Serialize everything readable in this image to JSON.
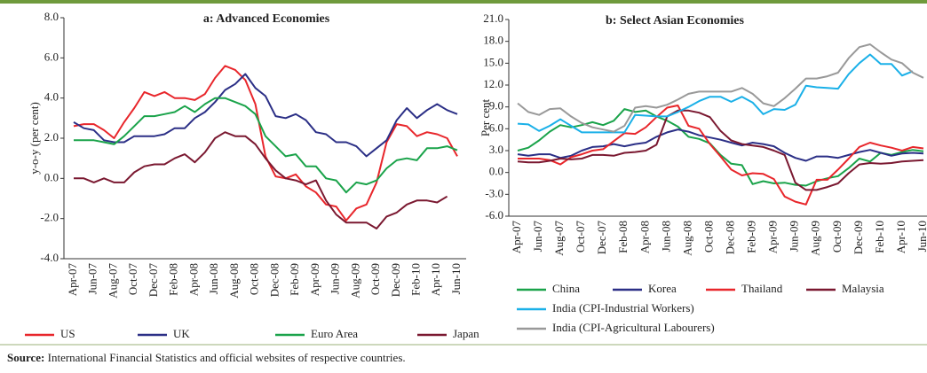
{
  "chart_data": [
    {
      "type": "line",
      "title": "a: Advanced Economies",
      "y_label": "y-o-y (per cent)",
      "categories": [
        "Apr-07",
        null,
        "Jun-07",
        null,
        "Aug-07",
        null,
        "Oct-07",
        null,
        "Dec-07",
        null,
        "Feb-08",
        null,
        "Apr-08",
        null,
        "Jun-08",
        null,
        "Aug-08",
        null,
        "Oct-08",
        null,
        "Dec-08",
        null,
        "Feb-09",
        null,
        "Apr-09",
        null,
        "Jun-09",
        null,
        "Aug-09",
        null,
        "Oct-09",
        null,
        "Dec-09",
        null,
        "Feb-10",
        null,
        "Apr-10",
        null,
        "Jun-10"
      ],
      "ylim": [
        -4,
        8
      ],
      "yticks": [
        {
          "value": -4,
          "label": "-4.0"
        },
        {
          "value": -2,
          "label": "-2.0"
        },
        {
          "value": 0,
          "label": "0.0"
        },
        {
          "value": 2,
          "label": "2.0"
        },
        {
          "value": 4,
          "label": "4.0"
        },
        {
          "value": 6,
          "label": "6.0"
        },
        {
          "value": 8,
          "label": "8.0"
        }
      ],
      "series": [
        {
          "name": "US",
          "color": "#e8262b",
          "values": [
            2.6,
            2.7,
            2.7,
            2.4,
            2.0,
            2.8,
            3.5,
            4.3,
            4.1,
            4.3,
            4.0,
            4.0,
            3.9,
            4.2,
            5.0,
            5.6,
            5.4,
            4.9,
            3.7,
            1.1,
            0.1,
            0.0,
            0.2,
            -0.4,
            -0.7,
            -1.3,
            -1.4,
            -2.1,
            -1.5,
            -1.3,
            -0.2,
            1.8,
            2.7,
            2.6,
            2.1,
            2.3,
            2.2,
            2.0,
            1.1
          ]
        },
        {
          "name": "UK",
          "color": "#2b2f86",
          "values": [
            2.8,
            2.5,
            2.4,
            1.9,
            1.8,
            1.8,
            2.1,
            2.1,
            2.1,
            2.2,
            2.5,
            2.5,
            3.0,
            3.3,
            3.8,
            4.4,
            4.7,
            5.2,
            4.5,
            4.1,
            3.1,
            3.0,
            3.2,
            2.9,
            2.3,
            2.2,
            1.8,
            1.8,
            1.6,
            1.1,
            1.5,
            1.9,
            2.9,
            3.5,
            3.0,
            3.4,
            3.7,
            3.4,
            3.2
          ]
        },
        {
          "name": "Euro Area",
          "color": "#1aa34a",
          "values": [
            1.9,
            1.9,
            1.9,
            1.8,
            1.7,
            2.1,
            2.6,
            3.1,
            3.1,
            3.2,
            3.3,
            3.6,
            3.3,
            3.7,
            4.0,
            4.0,
            3.8,
            3.6,
            3.2,
            2.1,
            1.6,
            1.1,
            1.2,
            0.6,
            0.6,
            0.0,
            -0.1,
            -0.7,
            -0.2,
            -0.3,
            -0.1,
            0.5,
            0.9,
            1.0,
            0.9,
            1.5,
            1.5,
            1.6,
            1.4
          ]
        },
        {
          "name": "Japan",
          "color": "#7a1830",
          "values": [
            0.0,
            0.0,
            -0.2,
            0.0,
            -0.2,
            -0.2,
            0.3,
            0.6,
            0.7,
            0.7,
            1.0,
            1.2,
            0.8,
            1.3,
            2.0,
            2.3,
            2.1,
            2.1,
            1.7,
            1.0,
            0.4,
            0.0,
            -0.1,
            -0.3,
            -0.1,
            -1.1,
            -1.8,
            -2.2,
            -2.2,
            -2.2,
            -2.5,
            -1.9,
            -1.7,
            -1.3,
            -1.1,
            -1.1,
            -1.2,
            -0.9,
            null
          ]
        }
      ]
    },
    {
      "type": "line",
      "title": "b: Select Asian Economies",
      "y_label": "Per cent",
      "categories": [
        "Apr-07",
        null,
        "Jun-07",
        null,
        "Aug-07",
        null,
        "Oct-07",
        null,
        "Dec-07",
        null,
        "Feb-08",
        null,
        "Apr-08",
        null,
        "Jun-08",
        null,
        "Aug-08",
        null,
        "Oct-08",
        null,
        "Dec-08",
        null,
        "Feb-09",
        null,
        "Apr-09",
        null,
        "Jun-09",
        null,
        "Aug-09",
        null,
        "Oct-09",
        null,
        "Dec-09",
        null,
        "Feb-10",
        null,
        "Apr-10",
        null,
        "Jun-10"
      ],
      "ylim": [
        -6,
        21
      ],
      "yticks": [
        {
          "value": -6,
          "label": "-6.0"
        },
        {
          "value": -3,
          "label": "-3.0"
        },
        {
          "value": 0,
          "label": "0.0"
        },
        {
          "value": 3,
          "label": "3.0"
        },
        {
          "value": 6,
          "label": "6.0"
        },
        {
          "value": 9,
          "label": "9.0"
        },
        {
          "value": 12,
          "label": "12.0"
        },
        {
          "value": 15,
          "label": "15.0"
        },
        {
          "value": 18,
          "label": "18.0"
        },
        {
          "value": 21,
          "label": "21.0"
        }
      ],
      "series": [
        {
          "name": "China",
          "color": "#1aa34a",
          "values": [
            3.0,
            3.4,
            4.4,
            5.6,
            6.5,
            6.2,
            6.5,
            6.9,
            6.5,
            7.1,
            8.7,
            8.3,
            8.5,
            7.7,
            7.1,
            6.3,
            4.9,
            4.6,
            4.0,
            2.4,
            1.2,
            1.0,
            -1.6,
            -1.2,
            -1.5,
            -1.4,
            -1.7,
            -1.8,
            -1.2,
            -0.8,
            -0.5,
            0.6,
            1.9,
            1.5,
            2.7,
            2.4,
            2.8,
            3.1,
            2.9
          ]
        },
        {
          "name": "Korea",
          "color": "#2b2f86",
          "values": [
            2.5,
            2.3,
            2.5,
            2.5,
            2.0,
            2.3,
            3.0,
            3.5,
            3.6,
            3.9,
            3.6,
            3.9,
            4.1,
            4.9,
            5.5,
            5.9,
            5.6,
            5.1,
            4.8,
            4.5,
            4.1,
            3.7,
            4.1,
            3.9,
            3.6,
            2.7,
            2.0,
            1.6,
            2.2,
            2.2,
            2.0,
            2.4,
            2.8,
            3.1,
            2.7,
            2.3,
            2.6,
            2.7,
            2.6
          ]
        },
        {
          "name": "Thailand",
          "color": "#e8262b",
          "values": [
            1.9,
            1.9,
            1.9,
            1.7,
            1.1,
            2.1,
            2.5,
            3.0,
            3.2,
            4.3,
            5.4,
            5.3,
            6.2,
            7.6,
            8.9,
            9.2,
            6.4,
            6.0,
            3.9,
            2.2,
            0.4,
            -0.4,
            -0.1,
            -0.2,
            -0.9,
            -3.3,
            -4.0,
            -4.4,
            -1.0,
            -1.0,
            0.4,
            1.9,
            3.5,
            4.1,
            3.7,
            3.4,
            3.0,
            3.5,
            3.3
          ]
        },
        {
          "name": "Malaysia",
          "color": "#7a1830",
          "values": [
            1.5,
            1.4,
            1.4,
            1.6,
            1.9,
            1.8,
            1.9,
            2.4,
            2.4,
            2.3,
            2.7,
            2.8,
            3.0,
            3.8,
            7.7,
            8.5,
            8.5,
            8.2,
            7.6,
            5.7,
            4.4,
            3.9,
            3.7,
            3.5,
            3.0,
            2.4,
            -1.4,
            -2.4,
            -2.4,
            -2.0,
            -1.5,
            -0.1,
            1.1,
            1.3,
            1.2,
            1.3,
            1.5,
            1.6,
            1.7
          ]
        },
        {
          "name": "India (CPI-Industrial Workers)",
          "color": "#1ab0e8",
          "values": [
            6.7,
            6.6,
            5.7,
            6.4,
            7.3,
            6.4,
            5.5,
            5.5,
            5.5,
            5.5,
            5.5,
            7.9,
            7.8,
            7.7,
            7.7,
            8.3,
            9.0,
            9.8,
            10.4,
            10.4,
            9.7,
            10.4,
            9.6,
            8.0,
            8.7,
            8.6,
            9.3,
            11.9,
            11.7,
            11.6,
            11.5,
            13.5,
            15.0,
            16.2,
            14.9,
            14.9,
            13.3,
            13.9,
            null
          ]
        },
        {
          "name": "India (CPI-Agricultural Labourers)",
          "color": "#999999",
          "values": [
            9.5,
            8.3,
            7.9,
            8.7,
            8.8,
            7.7,
            6.8,
            6.2,
            5.9,
            5.6,
            6.4,
            8.9,
            9.1,
            8.9,
            9.3,
            10.0,
            10.8,
            11.1,
            11.1,
            11.1,
            11.1,
            11.6,
            10.8,
            9.5,
            9.1,
            10.2,
            11.5,
            12.9,
            12.9,
            13.2,
            13.7,
            15.7,
            17.2,
            17.6,
            16.5,
            15.5,
            15.0,
            13.7,
            13.0
          ]
        }
      ]
    }
  ],
  "source_label": "Source:",
  "source_text": "International Financial Statistics and official websites of respective countries."
}
